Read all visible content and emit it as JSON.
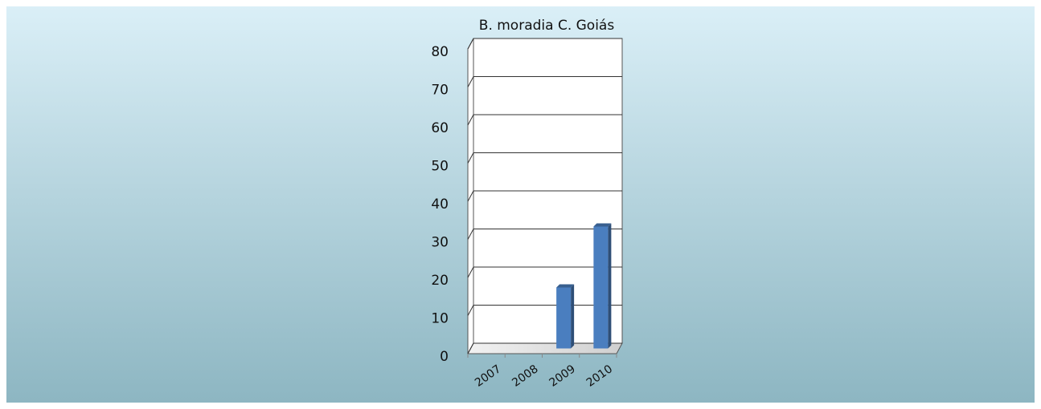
{
  "chart_data": {
    "type": "bar",
    "title": "B. moradia C. Goiás",
    "categories": [
      "2007",
      "2008",
      "2009",
      "2010"
    ],
    "values": [
      0,
      0,
      16,
      32
    ],
    "color": "#4a7ebf",
    "ylim": [
      0,
      80
    ],
    "yticks": [
      0,
      10,
      20,
      30,
      40,
      50,
      60,
      70,
      80
    ],
    "grid": true
  }
}
